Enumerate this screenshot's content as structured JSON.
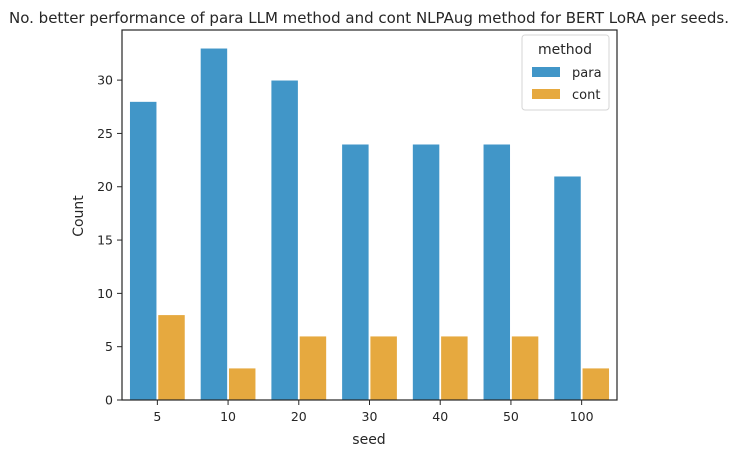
{
  "chart_data": {
    "type": "bar",
    "title": "No. better performance of para LLM method and cont NLPAug method for BERT LoRA per seeds.",
    "xlabel": "seed",
    "ylabel": "Count",
    "categories": [
      "5",
      "10",
      "20",
      "30",
      "40",
      "50",
      "100"
    ],
    "series": [
      {
        "name": "para",
        "color": "#4196c8",
        "values": [
          28,
          33,
          30,
          24,
          24,
          24,
          21
        ]
      },
      {
        "name": "cont",
        "color": "#e6a93f",
        "values": [
          8,
          3,
          6,
          6,
          6,
          6,
          3
        ]
      }
    ],
    "ylim": [
      0,
      34.7
    ],
    "yticks": [
      0,
      5,
      10,
      15,
      20,
      25,
      30
    ],
    "grid": false,
    "legend": {
      "title": "method",
      "placement": "top-right"
    }
  }
}
